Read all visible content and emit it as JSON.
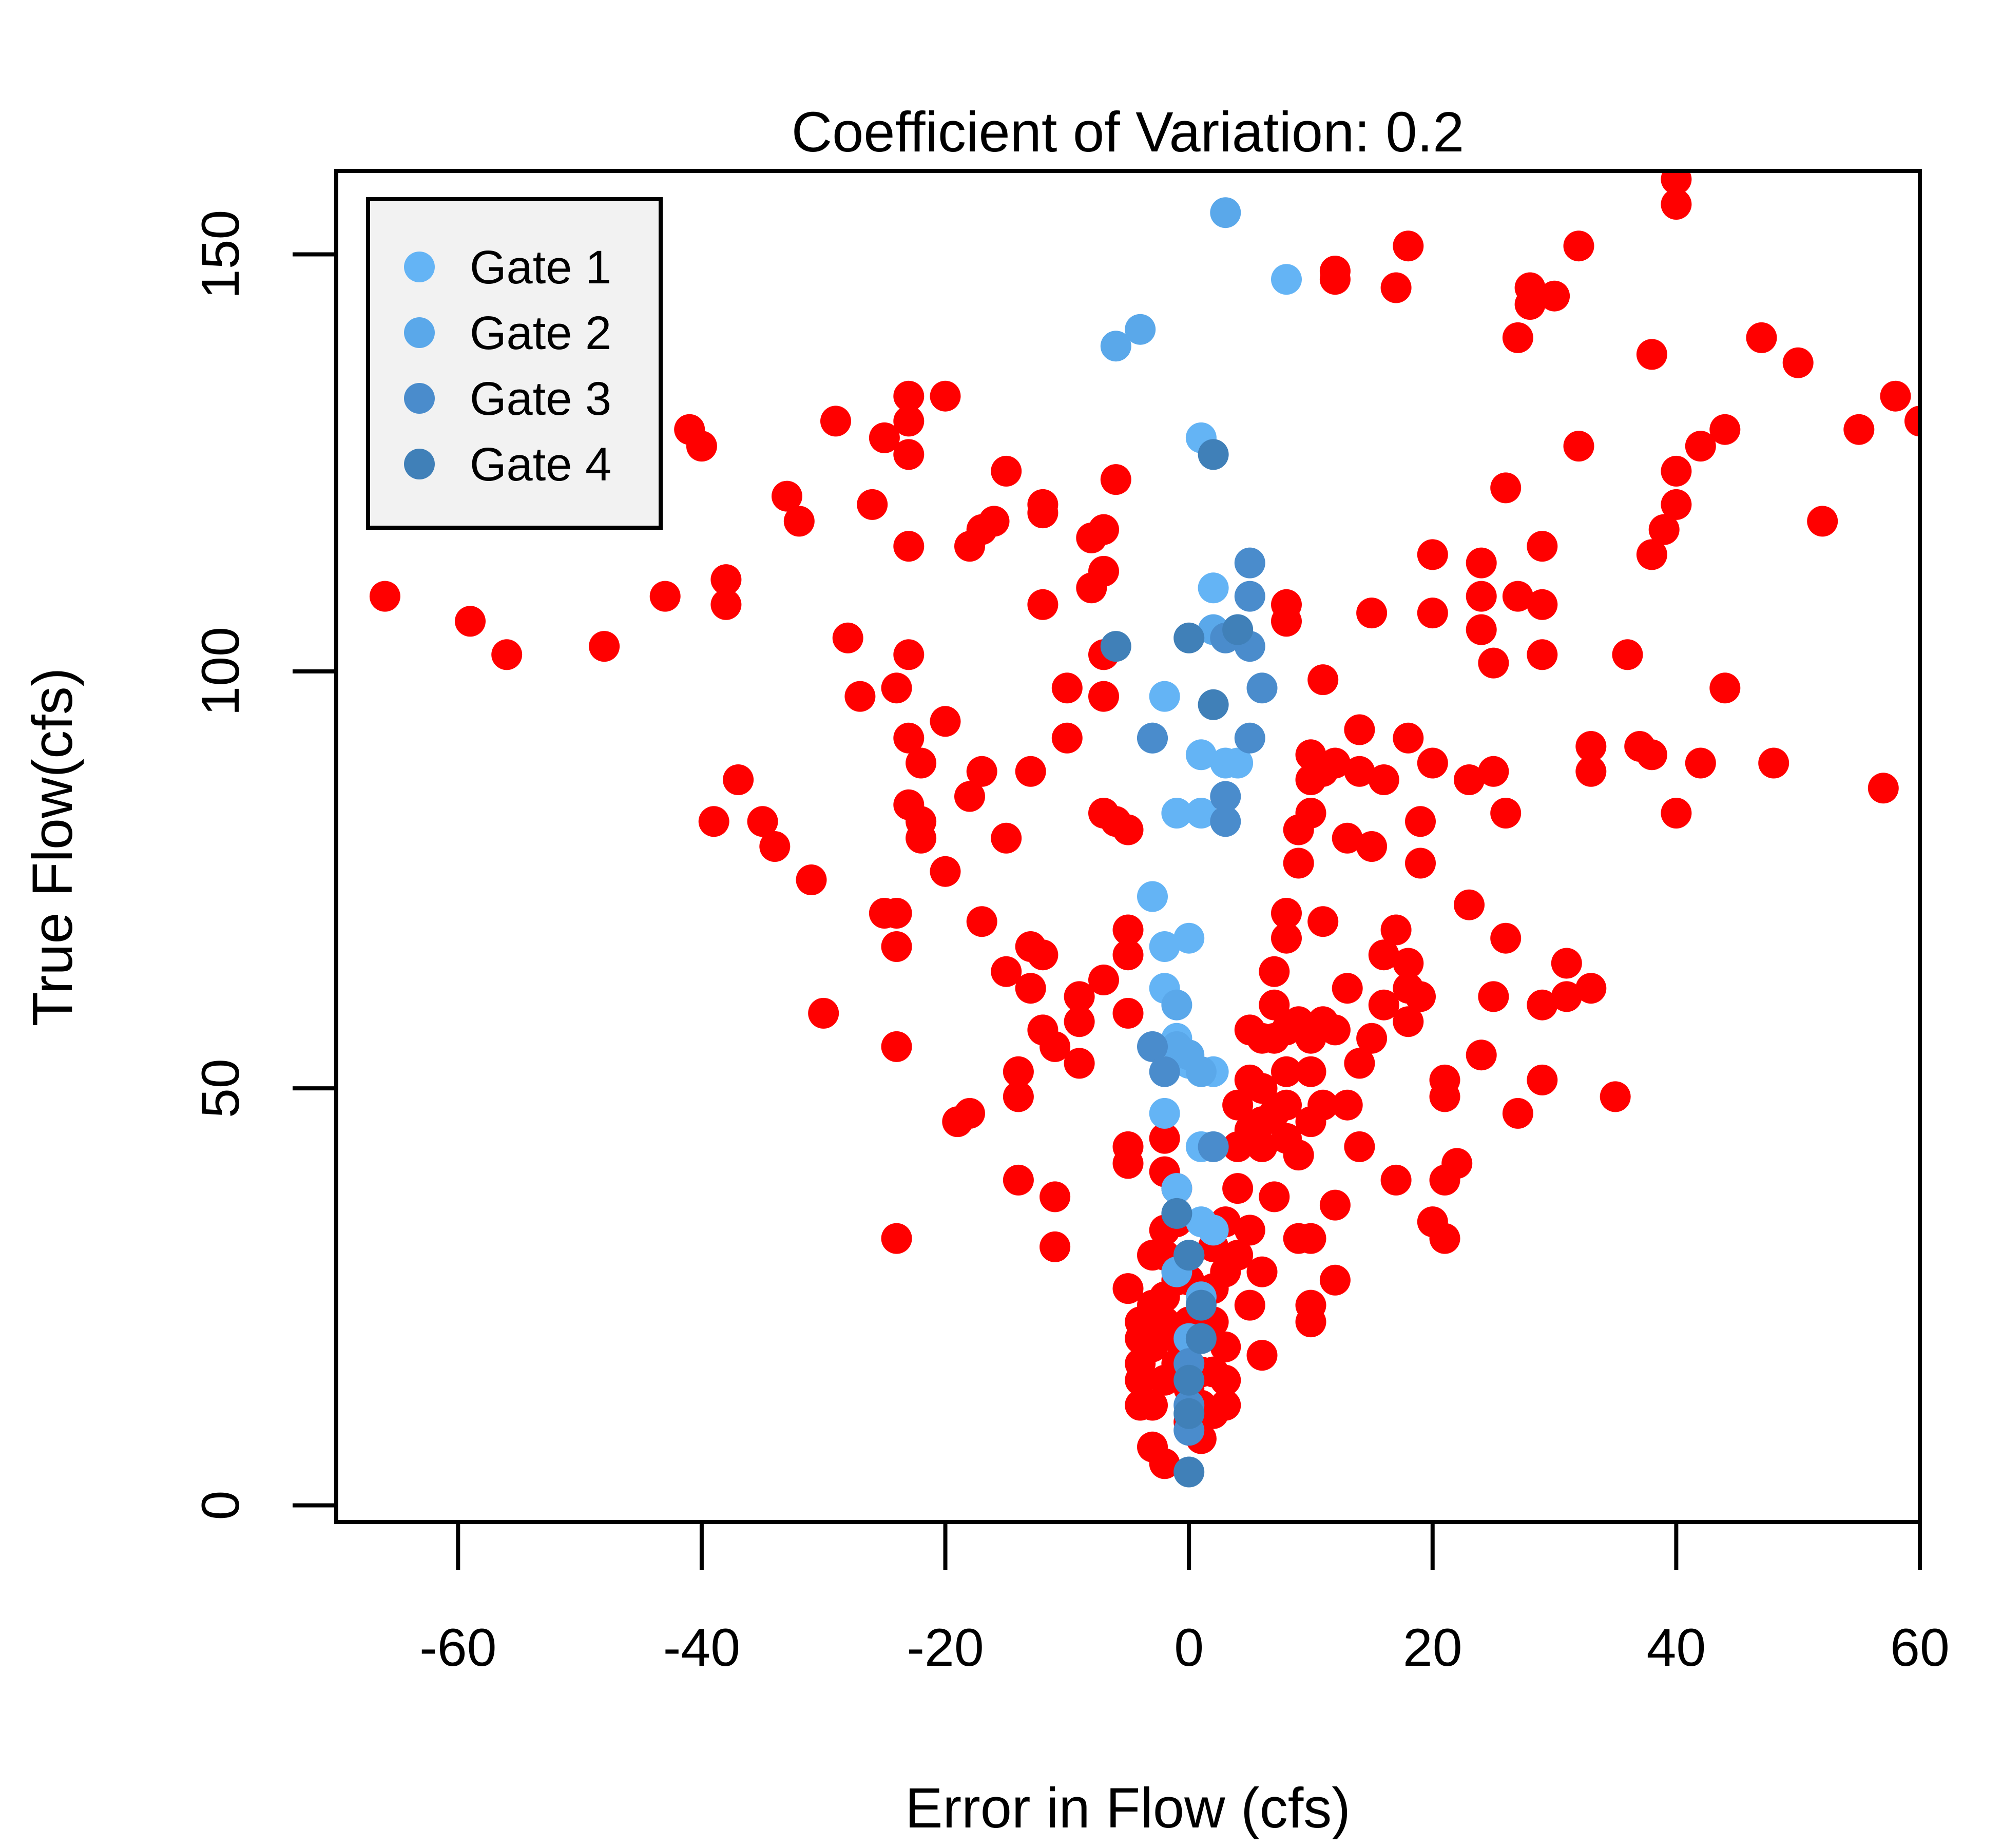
{
  "chart_data": {
    "type": "scatter",
    "title": "Coefficient of Variation: 0.2",
    "xlabel": "Error in Flow (cfs)",
    "ylabel": "True Flow(cfs)",
    "xlim": [
      -70,
      60
    ],
    "ylim": [
      -2,
      160
    ],
    "x_ticks": [
      -60,
      -40,
      -20,
      0,
      20,
      40,
      60
    ],
    "y_ticks": [
      0,
      50,
      100,
      150
    ],
    "grid": false,
    "legend_position": "top-left",
    "series": [
      {
        "name": "",
        "color": "#ff0000",
        "points": [
          [
            -66,
            109
          ],
          [
            -59,
            106
          ],
          [
            -56,
            102
          ],
          [
            -48,
            103
          ],
          [
            -43,
            109
          ],
          [
            -41,
            129
          ],
          [
            -40,
            127
          ],
          [
            -38,
            111
          ],
          [
            -38,
            108
          ],
          [
            -37,
            87
          ],
          [
            -39,
            82
          ],
          [
            -35,
            82
          ],
          [
            -34,
            79
          ],
          [
            -33,
            121
          ],
          [
            -32,
            118
          ],
          [
            -31,
            75
          ],
          [
            -30,
            59
          ],
          [
            -29,
            130
          ],
          [
            -28,
            104
          ],
          [
            -27,
            97
          ],
          [
            -26,
            120
          ],
          [
            -25,
            128
          ],
          [
            -25,
            71
          ],
          [
            -24,
            67
          ],
          [
            -23,
            133
          ],
          [
            -23,
            130
          ],
          [
            -23,
            126
          ],
          [
            -23,
            115
          ],
          [
            -23,
            102
          ],
          [
            -23,
            92
          ],
          [
            -22,
            89
          ],
          [
            -23,
            84
          ],
          [
            -22,
            82
          ],
          [
            -22,
            80
          ],
          [
            -24,
            98
          ],
          [
            -24,
            71
          ],
          [
            -24,
            55
          ],
          [
            -24,
            32
          ],
          [
            -20,
            133
          ],
          [
            -20,
            94
          ],
          [
            -20,
            76
          ],
          [
            -19,
            46
          ],
          [
            -18,
            85
          ],
          [
            -18,
            47
          ],
          [
            -17,
            88
          ],
          [
            -17,
            117
          ],
          [
            -18,
            115
          ],
          [
            -17,
            70
          ],
          [
            -16,
            118
          ],
          [
            -15,
            124
          ],
          [
            -15,
            80
          ],
          [
            -15,
            64
          ],
          [
            -14,
            52
          ],
          [
            -14,
            49
          ],
          [
            -14,
            39
          ],
          [
            -13,
            67
          ],
          [
            -12,
            66
          ],
          [
            -12,
            120
          ],
          [
            -12,
            119
          ],
          [
            -12,
            108
          ],
          [
            -11,
            37
          ],
          [
            -11,
            31
          ],
          [
            -13,
            88
          ],
          [
            -13,
            62
          ],
          [
            -12,
            57
          ],
          [
            -11,
            55
          ],
          [
            -10,
            98
          ],
          [
            -10,
            92
          ],
          [
            -9,
            61
          ],
          [
            -9,
            58
          ],
          [
            -9,
            53
          ],
          [
            -8,
            116
          ],
          [
            -8,
            110
          ],
          [
            -7,
            117
          ],
          [
            -7,
            112
          ],
          [
            -6,
            123
          ],
          [
            -7,
            102
          ],
          [
            -7,
            97
          ],
          [
            -7,
            83
          ],
          [
            -7,
            63
          ],
          [
            -6,
            82
          ],
          [
            -5,
            81
          ],
          [
            -5,
            69
          ],
          [
            -5,
            66
          ],
          [
            -5,
            59
          ],
          [
            -5,
            43
          ],
          [
            -5,
            41
          ],
          [
            -5,
            26
          ],
          [
            -4,
            22
          ],
          [
            -4,
            20
          ],
          [
            -4,
            17
          ],
          [
            -4,
            15
          ],
          [
            -4,
            12
          ],
          [
            -3,
            30
          ],
          [
            -3,
            24
          ],
          [
            -3,
            19
          ],
          [
            -3,
            12
          ],
          [
            -3,
            7
          ],
          [
            -2,
            44
          ],
          [
            -2,
            40
          ],
          [
            -2,
            33
          ],
          [
            -2,
            30
          ],
          [
            -2,
            25
          ],
          [
            -2,
            22
          ],
          [
            -2,
            15
          ],
          [
            -2,
            5
          ],
          [
            -1,
            38
          ],
          [
            -1,
            34
          ],
          [
            -1,
            29
          ],
          [
            -1,
            27
          ],
          [
            -1,
            20
          ],
          [
            -1,
            17
          ],
          [
            0,
            27
          ],
          [
            0,
            22
          ],
          [
            0,
            14
          ],
          [
            0,
            10
          ],
          [
            1,
            16
          ],
          [
            1,
            12
          ],
          [
            1,
            8
          ],
          [
            2,
            31
          ],
          [
            2,
            26
          ],
          [
            2,
            22
          ],
          [
            2,
            16
          ],
          [
            2,
            11
          ],
          [
            3,
            34
          ],
          [
            3,
            28
          ],
          [
            3,
            19
          ],
          [
            3,
            15
          ],
          [
            3,
            12
          ],
          [
            4,
            38
          ],
          [
            4,
            48
          ],
          [
            4,
            43
          ],
          [
            4,
            30
          ],
          [
            5,
            57
          ],
          [
            5,
            51
          ],
          [
            5,
            45
          ],
          [
            5,
            33
          ],
          [
            5,
            24
          ],
          [
            6,
            56
          ],
          [
            6,
            50
          ],
          [
            6,
            46
          ],
          [
            6,
            43
          ],
          [
            6,
            28
          ],
          [
            6,
            18
          ],
          [
            7,
            64
          ],
          [
            7,
            60
          ],
          [
            7,
            56
          ],
          [
            7,
            47
          ],
          [
            7,
            37
          ],
          [
            8,
            71
          ],
          [
            8,
            68
          ],
          [
            8,
            108
          ],
          [
            8,
            106
          ],
          [
            8,
            57
          ],
          [
            8,
            52
          ],
          [
            8,
            48
          ],
          [
            8,
            44
          ],
          [
            9,
            81
          ],
          [
            9,
            77
          ],
          [
            9,
            58
          ],
          [
            9,
            42
          ],
          [
            9,
            32
          ],
          [
            10,
            83
          ],
          [
            10,
            90
          ],
          [
            10,
            87
          ],
          [
            10,
            56
          ],
          [
            10,
            52
          ],
          [
            10,
            46
          ],
          [
            10,
            32
          ],
          [
            10,
            24
          ],
          [
            10,
            22
          ],
          [
            11,
            99
          ],
          [
            11,
            88
          ],
          [
            11,
            70
          ],
          [
            11,
            58
          ],
          [
            11,
            48
          ],
          [
            12,
            148
          ],
          [
            12,
            147
          ],
          [
            12,
            89
          ],
          [
            12,
            57
          ],
          [
            12,
            27
          ],
          [
            12,
            36
          ],
          [
            13,
            80
          ],
          [
            13,
            62
          ],
          [
            13,
            48
          ],
          [
            14,
            93
          ],
          [
            14,
            88
          ],
          [
            14,
            53
          ],
          [
            14,
            43
          ],
          [
            15,
            107
          ],
          [
            15,
            56
          ],
          [
            15,
            79
          ],
          [
            16,
            87
          ],
          [
            16,
            66
          ],
          [
            16,
            60
          ],
          [
            17,
            146
          ],
          [
            17,
            69
          ],
          [
            17,
            39
          ],
          [
            18,
            151
          ],
          [
            18,
            92
          ],
          [
            18,
            65
          ],
          [
            18,
            62
          ],
          [
            18,
            58
          ],
          [
            19,
            82
          ],
          [
            19,
            77
          ],
          [
            19,
            61
          ],
          [
            20,
            107
          ],
          [
            20,
            89
          ],
          [
            20,
            114
          ],
          [
            20,
            34
          ],
          [
            21,
            51
          ],
          [
            21,
            49
          ],
          [
            21,
            39
          ],
          [
            21,
            32
          ],
          [
            22,
            41
          ],
          [
            23,
            87
          ],
          [
            23,
            72
          ],
          [
            24,
            113
          ],
          [
            24,
            109
          ],
          [
            24,
            105
          ],
          [
            24,
            54
          ],
          [
            25,
            101
          ],
          [
            25,
            88
          ],
          [
            25,
            61
          ],
          [
            26,
            122
          ],
          [
            26,
            83
          ],
          [
            26,
            68
          ],
          [
            27,
            109
          ],
          [
            27,
            140
          ],
          [
            27,
            47
          ],
          [
            28,
            146
          ],
          [
            28,
            144
          ],
          [
            29,
            102
          ],
          [
            29,
            60
          ],
          [
            29,
            51
          ],
          [
            29,
            115
          ],
          [
            29,
            108
          ],
          [
            30,
            145
          ],
          [
            31,
            65
          ],
          [
            31,
            61
          ],
          [
            32,
            127
          ],
          [
            32,
            151
          ],
          [
            33,
            62
          ],
          [
            33,
            91
          ],
          [
            33,
            88
          ],
          [
            35,
            49
          ],
          [
            36,
            102
          ],
          [
            37,
            91
          ],
          [
            38,
            138
          ],
          [
            38,
            114
          ],
          [
            38,
            90
          ],
          [
            39,
            117
          ],
          [
            40,
            159
          ],
          [
            40,
            156
          ],
          [
            40,
            124
          ],
          [
            40,
            120
          ],
          [
            40,
            83
          ],
          [
            42,
            89
          ],
          [
            42,
            127
          ],
          [
            44,
            98
          ],
          [
            44,
            129
          ],
          [
            47,
            140
          ],
          [
            48,
            89
          ],
          [
            50,
            137
          ],
          [
            52,
            118
          ],
          [
            55,
            129
          ],
          [
            58,
            133
          ],
          [
            57,
            86
          ],
          [
            60,
            130
          ]
        ]
      },
      {
        "name": "Gate 1",
        "color": "#64b4f5",
        "points": [
          [
            8,
            147
          ],
          [
            1,
            128
          ],
          [
            2,
            110
          ],
          [
            -2,
            97
          ],
          [
            1,
            90
          ],
          [
            3,
            89
          ],
          [
            4,
            89
          ],
          [
            -1,
            83
          ],
          [
            1,
            83
          ],
          [
            -3,
            73
          ],
          [
            -2,
            67
          ],
          [
            0,
            68
          ],
          [
            -2,
            62
          ],
          [
            -1,
            56
          ],
          [
            0,
            53
          ],
          [
            2,
            52
          ],
          [
            -2,
            47
          ],
          [
            1,
            43
          ],
          [
            -1,
            38
          ],
          [
            1,
            34
          ],
          [
            2,
            33
          ],
          [
            0,
            30
          ]
        ]
      },
      {
        "name": "Gate 2",
        "color": "#5aa8ea",
        "points": [
          [
            3,
            155
          ],
          [
            -4,
            141
          ],
          [
            -6,
            139
          ],
          [
            2,
            105
          ],
          [
            4,
            105
          ],
          [
            -3,
            92
          ],
          [
            -1,
            60
          ],
          [
            0,
            54
          ],
          [
            -1,
            55
          ],
          [
            1,
            52
          ],
          [
            -1,
            28
          ],
          [
            1,
            25
          ],
          [
            0,
            20
          ]
        ]
      },
      {
        "name": "Gate 3",
        "color": "#4a8ccc",
        "points": [
          [
            5,
            113
          ],
          [
            5,
            109
          ],
          [
            3,
            104
          ],
          [
            5,
            103
          ],
          [
            6,
            98
          ],
          [
            5,
            92
          ],
          [
            3,
            85
          ],
          [
            3,
            82
          ],
          [
            -3,
            92
          ],
          [
            2,
            43
          ],
          [
            -3,
            55
          ],
          [
            -2,
            52
          ],
          [
            0,
            17
          ],
          [
            0,
            12
          ],
          [
            0,
            9
          ]
        ]
      },
      {
        "name": "Gate 4",
        "color": "#4080b8",
        "points": [
          [
            2,
            126
          ],
          [
            -6,
            103
          ],
          [
            0,
            104
          ],
          [
            4,
            105
          ],
          [
            2,
            96
          ],
          [
            -1,
            35
          ],
          [
            0,
            30
          ],
          [
            1,
            24
          ],
          [
            1,
            20
          ],
          [
            0,
            15
          ],
          [
            0,
            11
          ],
          [
            0,
            4
          ]
        ]
      }
    ]
  }
}
